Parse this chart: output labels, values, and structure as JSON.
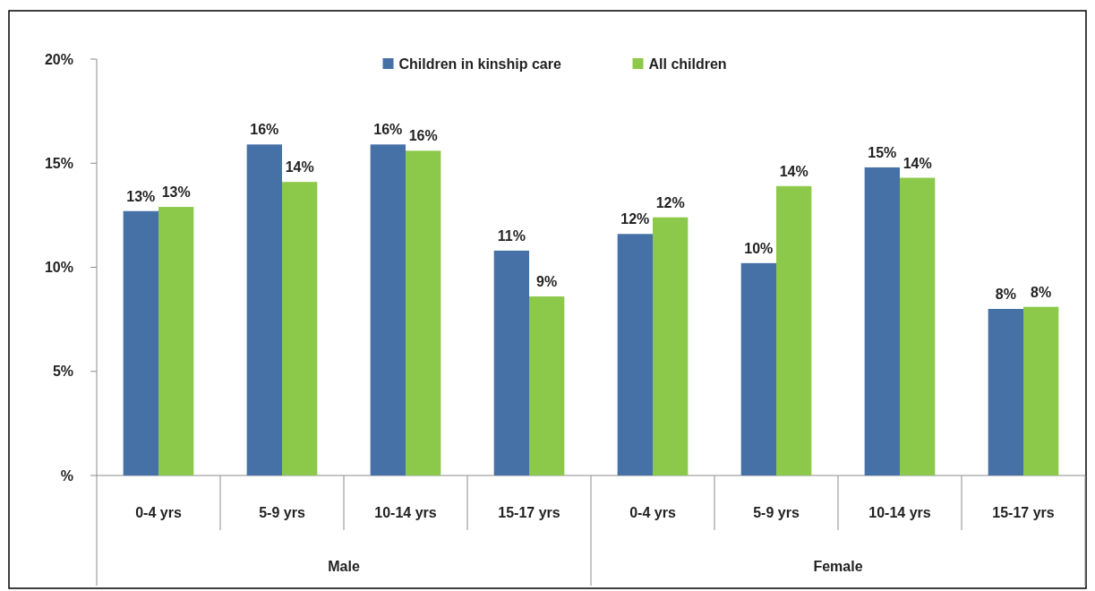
{
  "chart_data": {
    "type": "bar",
    "categories": [
      "0-4 yrs",
      "5-9 yrs",
      "10-14 yrs",
      "15-17 yrs",
      "0-4 yrs",
      "5-9 yrs",
      "10-14 yrs",
      "15-17 yrs"
    ],
    "series": [
      {
        "name": "Children in kinship care",
        "color": "#4571a7",
        "values": [
          12.7,
          15.9,
          15.9,
          10.8,
          11.6,
          10.2,
          14.8,
          8.0
        ],
        "value_labels": [
          "13%",
          "16%",
          "16%",
          "11%",
          "12%",
          "10%",
          "15%",
          "8%"
        ]
      },
      {
        "name": "All children",
        "color": "#8cc94b",
        "values": [
          12.9,
          14.1,
          15.6,
          8.6,
          12.4,
          13.9,
          14.3,
          8.1
        ],
        "value_labels": [
          "13%",
          "14%",
          "16%",
          "9%",
          "12%",
          "14%",
          "14%",
          "8%"
        ]
      }
    ],
    "ylim": [
      0,
      20
    ],
    "yticks": [
      {
        "value": 0,
        "label": "%"
      },
      {
        "value": 5,
        "label": "5%"
      },
      {
        "value": 10,
        "label": "10%"
      },
      {
        "value": 15,
        "label": "15%"
      },
      {
        "value": 20,
        "label": "20%"
      }
    ],
    "legend": "top",
    "annotations": [
      "Male",
      "Female"
    ]
  }
}
